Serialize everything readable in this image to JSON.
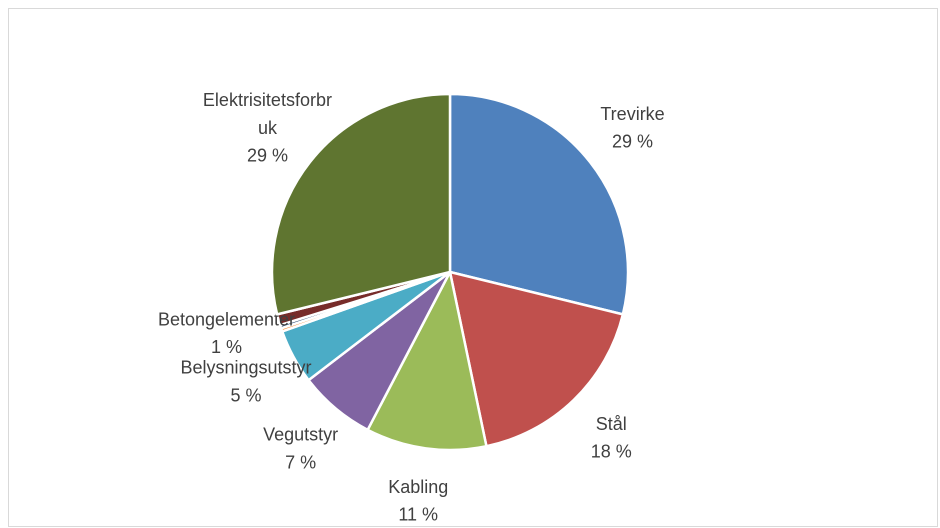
{
  "chart_data": {
    "type": "pie",
    "categories": [
      "Trevirke",
      "Stål",
      "Kabling",
      "Vegutstyr",
      "Belysningsutstyr",
      null,
      null,
      "Betongelementer",
      "Elektrisitetsforbruk"
    ],
    "values": [
      29,
      18,
      11,
      7,
      5,
      0.3,
      0.3,
      1,
      29
    ],
    "value_labels": [
      "29 %",
      "18 %",
      "11 %",
      "7 %",
      "5 %",
      null,
      null,
      "1 %",
      "29 %"
    ],
    "colors": [
      "#4f81bd",
      "#c0504d",
      "#9bbb59",
      "#8064a2",
      "#4bacc6",
      "#f79646",
      "#2c4d75",
      "#772c2a",
      "#5f7530"
    ]
  }
}
